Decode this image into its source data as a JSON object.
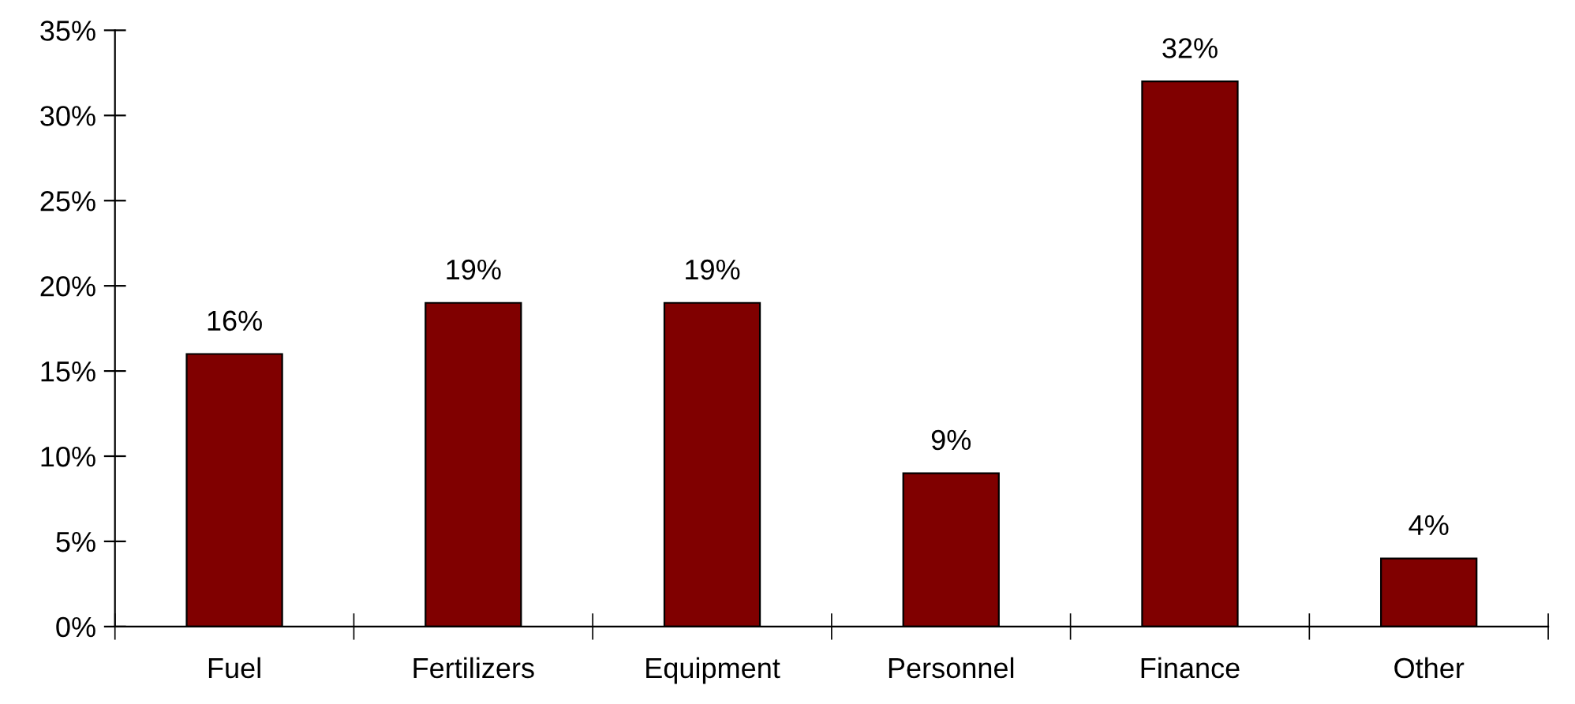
{
  "chart_data": {
    "type": "bar",
    "categories": [
      "Fuel",
      "Fertilizers",
      "Equipment",
      "Personnel",
      "Finance",
      "Other"
    ],
    "values": [
      16,
      19,
      19,
      9,
      32,
      4
    ],
    "value_labels": [
      "16%",
      "19%",
      "19%",
      "9%",
      "32%",
      "4%"
    ],
    "color": "#800000",
    "ylim": [
      0,
      35
    ],
    "yticks": [
      {
        "value": 0,
        "label": "0%"
      },
      {
        "value": 5,
        "label": "5%"
      },
      {
        "value": 10,
        "label": "10%"
      },
      {
        "value": 15,
        "label": "15%"
      },
      {
        "value": 20,
        "label": "20%"
      },
      {
        "value": 25,
        "label": "25%"
      },
      {
        "value": 30,
        "label": "30%"
      },
      {
        "value": 35,
        "label": "35%"
      }
    ],
    "grid": false,
    "legend": false
  }
}
